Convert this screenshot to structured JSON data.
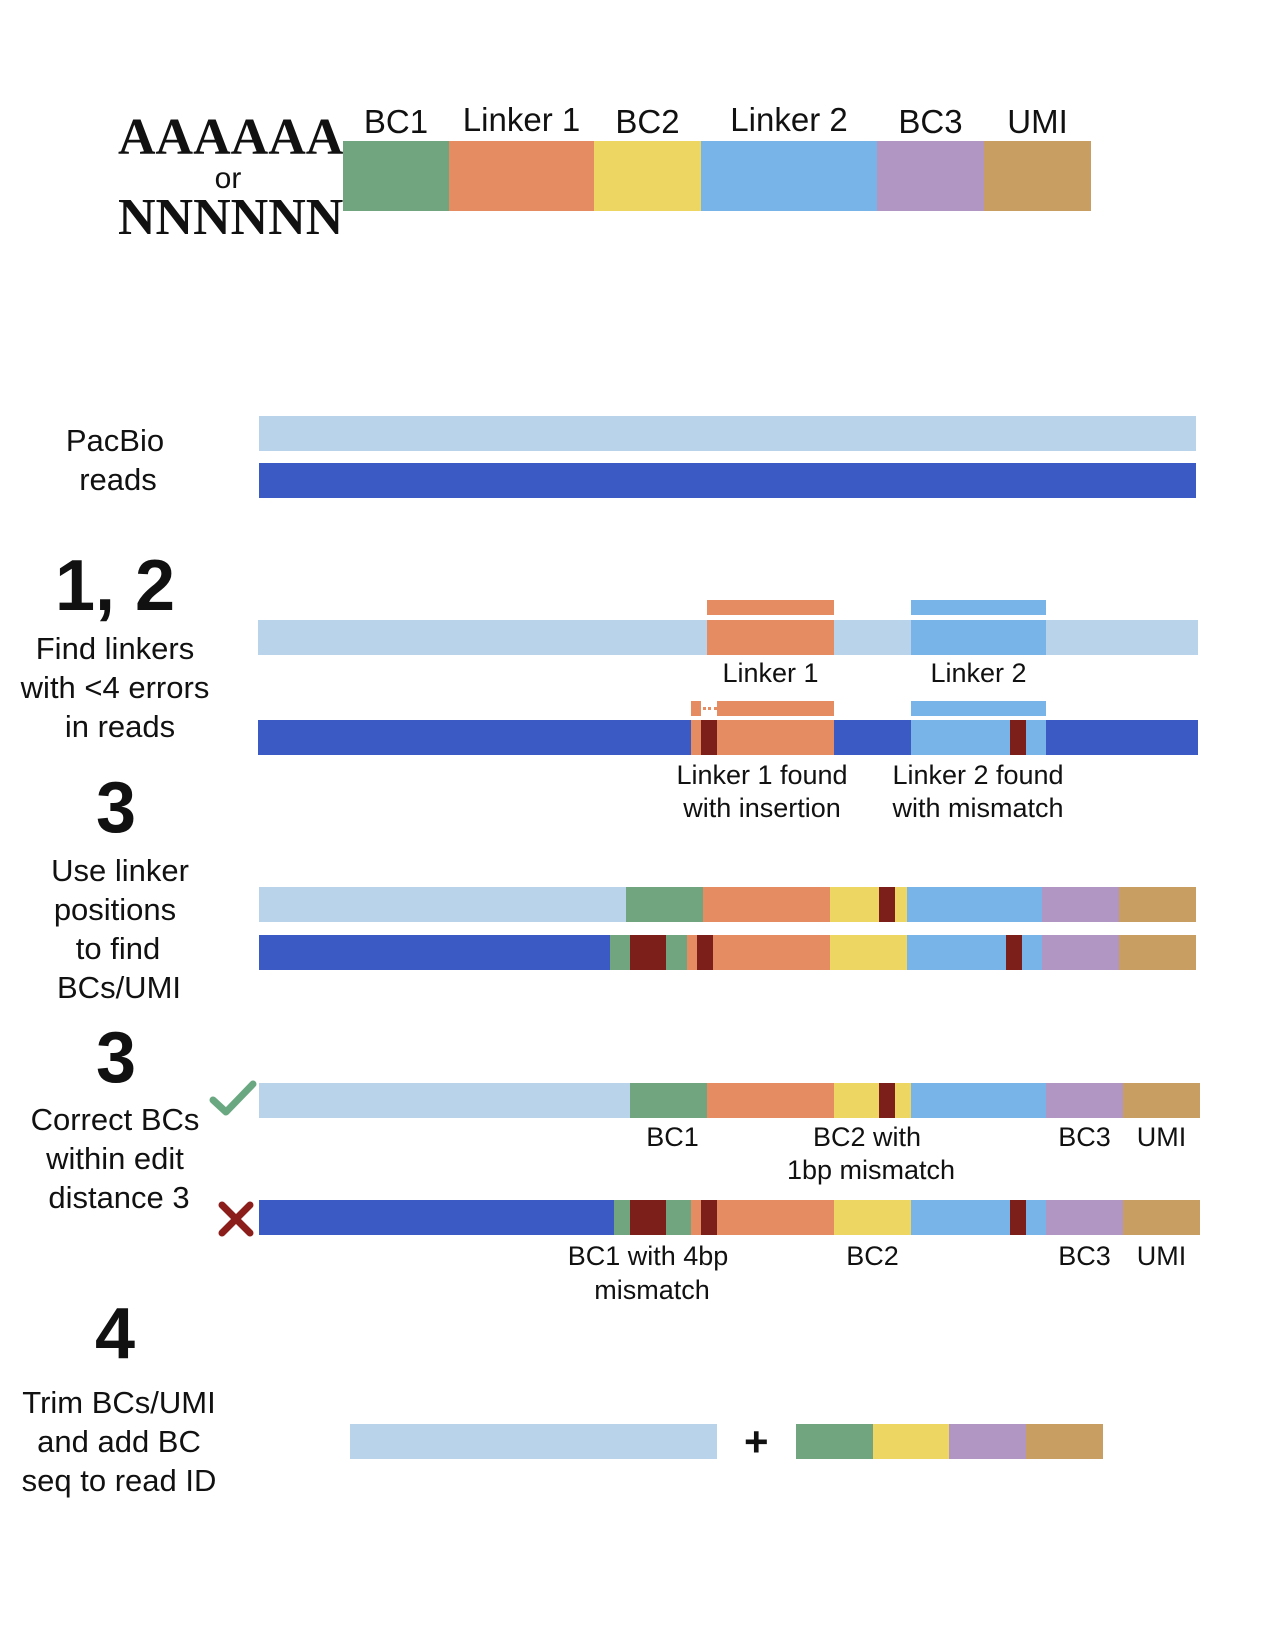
{
  "colors": {
    "bc1": "#70a580",
    "linker1": "#e68c62",
    "bc2": "#eed662",
    "linker2": "#78b4e8",
    "bc3": "#b196c4",
    "umi": "#c89e62",
    "read_light": "#b9d4ea",
    "read_dark": "#3c5ac4",
    "error": "#7c1e1a",
    "check": "#6aa882",
    "cross": "#8b1e1a"
  },
  "structure": {
    "prefix_top": "AAAAAA",
    "prefix_or": "or",
    "prefix_bottom": "NNNNNN",
    "segment_labels": [
      "BC1",
      "Linker 1",
      "BC2",
      "Linker 2",
      "BC3",
      "UMI"
    ]
  },
  "pacbio": {
    "title_line1": "PacBio",
    "title_line2": "reads"
  },
  "step12": {
    "number": "1, 2",
    "text_line1": "Find linkers",
    "text_line2": "with <4 errors",
    "text_line3": "in reads",
    "linker1_label": "Linker 1",
    "linker2_label": "Linker 2",
    "linker1_found_line1": "Linker 1 found",
    "linker1_found_line2": "with insertion",
    "linker2_found_line1": "Linker 2 found",
    "linker2_found_line2": "with mismatch"
  },
  "step3a": {
    "number": "3",
    "text_line1": "Use linker",
    "text_line2": "positions",
    "text_line3": "to find",
    "text_line4": "BCs/UMI"
  },
  "step3b": {
    "number": "3",
    "text_line1": "Correct BCs",
    "text_line2": "within edit",
    "text_line3": "distance 3",
    "check_icon": "check-icon",
    "cross_icon": "cross-icon",
    "top_bc1": "BC1",
    "top_bc2_line1": "BC2 with",
    "top_bc2_line2": "1bp mismatch",
    "top_bc3": "BC3",
    "top_umi": "UMI",
    "bot_bc1_line1": "BC1 with 4bp",
    "bot_bc1_line2": "mismatch",
    "bot_bc2": "BC2",
    "bot_bc3": "BC3",
    "bot_umi": "UMI"
  },
  "step4": {
    "number": "4",
    "text_line1": "Trim BCs/UMI",
    "text_line2": "and add BC",
    "text_line3": "seq to read ID",
    "plus": "+"
  }
}
